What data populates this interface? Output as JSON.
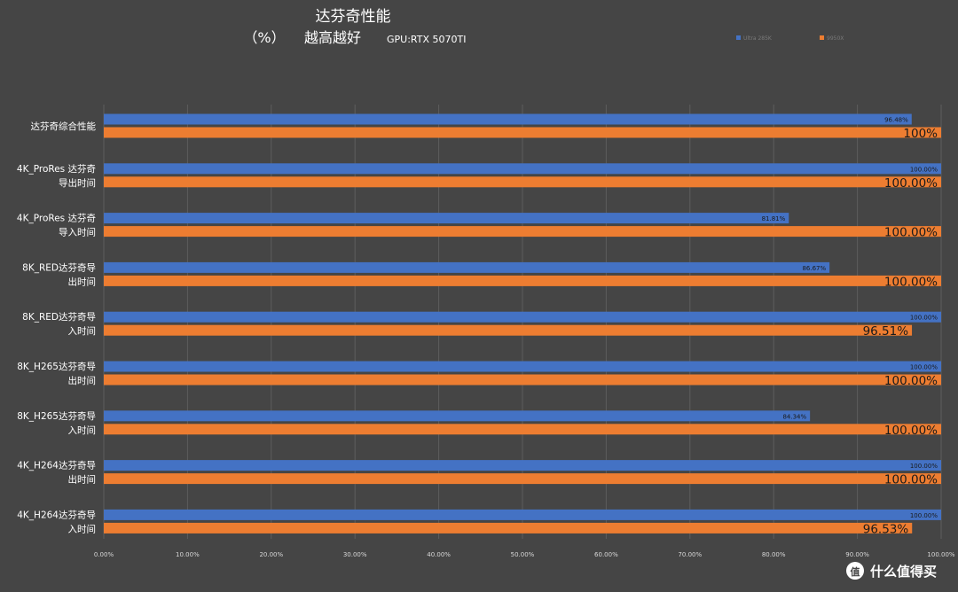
{
  "chart_data": {
    "type": "bar",
    "orientation": "horizontal",
    "title": "达芬奇性能",
    "subtitle_unit": "（%）",
    "subtitle_note": "越高越好",
    "gpu_note": "GPU:RTX 5070TI",
    "categories": [
      [
        "达芬奇综合性能"
      ],
      [
        "4K_ProRes 达芬奇",
        "导出时间"
      ],
      [
        "4K_ProRes 达芬奇",
        "导入时间"
      ],
      [
        "8K_RED达芬奇导",
        "出时间"
      ],
      [
        "8K_RED达芬奇导",
        "入时间"
      ],
      [
        "8K_H265达芬奇导",
        "出时间"
      ],
      [
        "8K_H265达芬奇导",
        "入时间"
      ],
      [
        "4K_H264达芬奇导",
        "出时间"
      ],
      [
        "4K_H264达芬奇导",
        "入时间"
      ]
    ],
    "series": [
      {
        "name": "Ultra 285K",
        "color": "#4472c4",
        "values": [
          96.48,
          100.0,
          81.81,
          86.67,
          100.0,
          100.0,
          84.34,
          100.0,
          100.0
        ],
        "labels": [
          "96.48%",
          "100.00%",
          "81.81%",
          "86.67%",
          "100.00%",
          "100.00%",
          "84.34%",
          "100.00%",
          "100.00%"
        ]
      },
      {
        "name": "9950X",
        "color": "#ed7d31",
        "values": [
          100,
          100.0,
          100.0,
          100.0,
          96.51,
          100.0,
          100.0,
          100.0,
          96.53
        ],
        "labels": [
          "100%",
          "100.00%",
          "100.00%",
          "100.00%",
          "96.51%",
          "100.00%",
          "100.00%",
          "100.00%",
          "96.53%"
        ]
      }
    ],
    "xlim": [
      0,
      100
    ],
    "xticks": [
      "0.00%",
      "10.00%",
      "20.00%",
      "30.00%",
      "40.00%",
      "50.00%",
      "60.00%",
      "70.00%",
      "80.00%",
      "90.00%",
      "100.00%"
    ],
    "grid": true,
    "legend_position": "top-right"
  },
  "watermark": {
    "icon": "zhi-icon",
    "text": "什么值得买",
    "icon_text": "值"
  }
}
